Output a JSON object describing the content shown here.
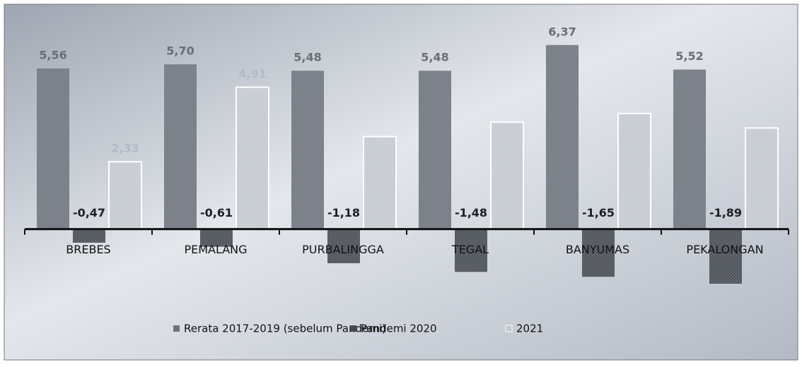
{
  "chart_data": {
    "type": "bar",
    "categories": [
      "BREBES",
      "PEMALANG",
      "PURBALINGGA",
      "TEGAL",
      "BANYUMAS",
      "PEKALONGAN"
    ],
    "series": [
      {
        "name": "Rerata 2017-2019 (sebelum Pandemi)",
        "color": "#6d737c",
        "values": [
          5.56,
          5.7,
          5.48,
          5.48,
          6.37,
          5.52
        ],
        "value_labels": [
          "5,56",
          "5,70",
          "5,48",
          "5,48",
          "6,37",
          "5,52"
        ]
      },
      {
        "name": "Pandemi 2020",
        "color": "#454a52",
        "values": [
          -0.47,
          -0.61,
          -1.18,
          -1.48,
          -1.65,
          -1.89
        ],
        "value_labels": [
          "-0,47",
          "-0,61",
          "-1,18",
          "-1,48",
          "-1,65",
          "-1,89"
        ]
      },
      {
        "name": "2021",
        "color": "#c3c8d0",
        "values": [
          2.33,
          4.91,
          3.2,
          3.7,
          4.0,
          3.5
        ],
        "value_labels": [
          "2,33",
          "4,91",
          null,
          null,
          null,
          null
        ]
      }
    ],
    "ylim": [
      -2.5,
      7
    ]
  }
}
